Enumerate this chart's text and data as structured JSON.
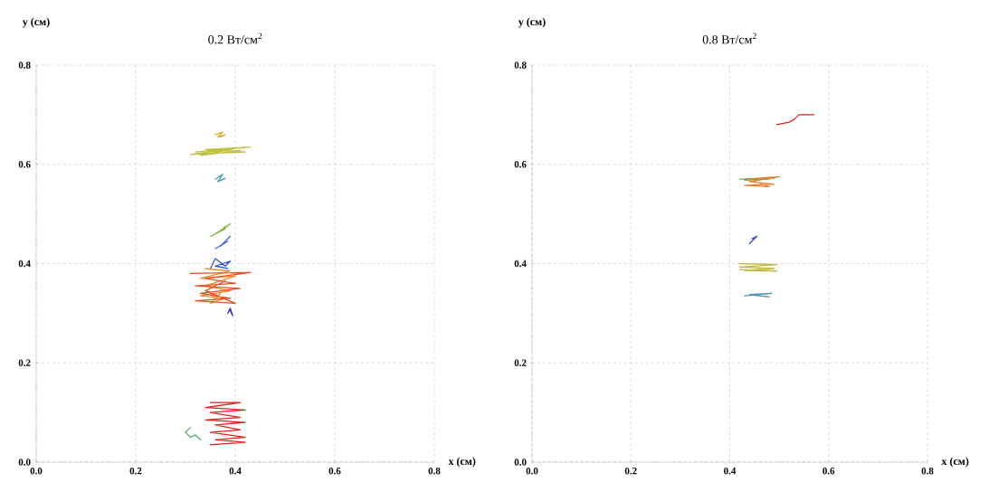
{
  "chart_data": [
    {
      "type": "line",
      "title": "0.2 Вт/см$^{2}$",
      "xlabel": "x (см)",
      "ylabel": "y (см)",
      "xlim": [
        0,
        0.8
      ],
      "ylim": [
        0,
        0.8
      ],
      "xticks": [
        {
          "value": 0,
          "label": "0.0"
        },
        0.2,
        0.4,
        0.6,
        0.8
      ],
      "yticks": [
        {
          "value": 0,
          "label": "0.0"
        },
        0.2,
        0.4,
        0.6,
        0.8
      ],
      "grid": true,
      "series": [
        {
          "color": "#e0b030",
          "x": [
            0.36,
            0.375,
            0.365,
            0.38,
            0.37
          ],
          "values": [
            0.66,
            0.665,
            0.655,
            0.66,
            0.655
          ]
        },
        {
          "color": "#c0c040",
          "x": [
            0.32,
            0.43,
            0.34,
            0.42,
            0.31,
            0.4,
            0.33,
            0.41
          ],
          "values": [
            0.625,
            0.635,
            0.63,
            0.625,
            0.62,
            0.632,
            0.618,
            0.628
          ]
        },
        {
          "color": "#4aa0b0",
          "x": [
            0.36,
            0.375,
            0.365,
            0.38,
            0.37
          ],
          "values": [
            0.57,
            0.58,
            0.565,
            0.572,
            0.568
          ]
        },
        {
          "color": "#8ab850",
          "x": [
            0.35,
            0.38,
            0.36,
            0.39,
            0.37,
            0.38
          ],
          "values": [
            0.455,
            0.47,
            0.46,
            0.48,
            0.465,
            0.475
          ]
        },
        {
          "color": "#4070d0",
          "x": [
            0.36,
            0.385,
            0.37,
            0.39,
            0.375
          ],
          "values": [
            0.43,
            0.445,
            0.435,
            0.455,
            0.44
          ]
        },
        {
          "color": "#3050d0",
          "x": [
            0.35,
            0.36,
            0.38,
            0.39,
            0.36,
            0.385
          ],
          "values": [
            0.39,
            0.41,
            0.395,
            0.405,
            0.395,
            0.39
          ]
        },
        {
          "color": "#e89030",
          "x": [
            0.34,
            0.39,
            0.33,
            0.4,
            0.34,
            0.39,
            0.33,
            0.38,
            0.35,
            0.37
          ],
          "values": [
            0.39,
            0.385,
            0.37,
            0.375,
            0.355,
            0.345,
            0.335,
            0.33,
            0.32,
            0.34
          ]
        },
        {
          "color": "#e85020",
          "x": [
            0.31,
            0.43,
            0.34,
            0.4,
            0.32,
            0.41,
            0.33,
            0.39,
            0.32,
            0.4,
            0.34,
            0.38
          ],
          "values": [
            0.38,
            0.382,
            0.37,
            0.36,
            0.355,
            0.35,
            0.34,
            0.33,
            0.325,
            0.32,
            0.345,
            0.365
          ]
        },
        {
          "color": "#4030c0",
          "x": [
            0.385,
            0.39,
            0.395,
            0.39
          ],
          "values": [
            0.3,
            0.31,
            0.295,
            0.305
          ]
        },
        {
          "color": "#e02020",
          "x": [
            0.35,
            0.41,
            0.34,
            0.42,
            0.35,
            0.41,
            0.34,
            0.42,
            0.36,
            0.41,
            0.35,
            0.42,
            0.36,
            0.42,
            0.35
          ],
          "values": [
            0.12,
            0.12,
            0.11,
            0.105,
            0.1,
            0.09,
            0.085,
            0.08,
            0.075,
            0.065,
            0.06,
            0.05,
            0.045,
            0.04,
            0.035
          ]
        },
        {
          "color": "#60b070",
          "x": [
            0.31,
            0.3,
            0.31,
            0.32,
            0.33
          ],
          "values": [
            0.07,
            0.06,
            0.05,
            0.055,
            0.045
          ]
        }
      ]
    },
    {
      "type": "line",
      "title": "0.8 Вт/см$^{2}$",
      "xlabel": "x (см)",
      "ylabel": "y (см)",
      "xlim": [
        0,
        0.8
      ],
      "ylim": [
        0,
        0.8
      ],
      "xticks": [
        {
          "value": 0,
          "label": "0.0"
        },
        0.2,
        0.4,
        0.6,
        0.8
      ],
      "yticks": [
        {
          "value": 0,
          "label": "0.0"
        },
        0.2,
        0.4,
        0.6,
        0.8
      ],
      "grid": true,
      "series": [
        {
          "color": "#e02020",
          "x": [
            0.495,
            0.52,
            0.53,
            0.54,
            0.57
          ],
          "values": [
            0.68,
            0.685,
            0.69,
            0.7,
            0.7
          ]
        },
        {
          "color": "#60b070",
          "x": [
            0.42,
            0.49,
            0.43,
            0.48
          ],
          "values": [
            0.57,
            0.572,
            0.568,
            0.57
          ]
        },
        {
          "color": "#e88030",
          "x": [
            0.43,
            0.5,
            0.44,
            0.49,
            0.43,
            0.48,
            0.45
          ],
          "values": [
            0.57,
            0.575,
            0.565,
            0.56,
            0.558,
            0.555,
            0.565
          ]
        },
        {
          "color": "#3050d0",
          "x": [
            0.44,
            0.455,
            0.445
          ],
          "values": [
            0.44,
            0.455,
            0.45
          ]
        },
        {
          "color": "#c0b840",
          "x": [
            0.42,
            0.495,
            0.42,
            0.49,
            0.43,
            0.495,
            0.42
          ],
          "values": [
            0.4,
            0.398,
            0.393,
            0.39,
            0.386,
            0.385,
            0.388
          ]
        },
        {
          "color": "#4a98b8",
          "x": [
            0.43,
            0.485,
            0.44,
            0.48,
            0.45
          ],
          "values": [
            0.335,
            0.34,
            0.338,
            0.333,
            0.336
          ]
        }
      ]
    }
  ]
}
